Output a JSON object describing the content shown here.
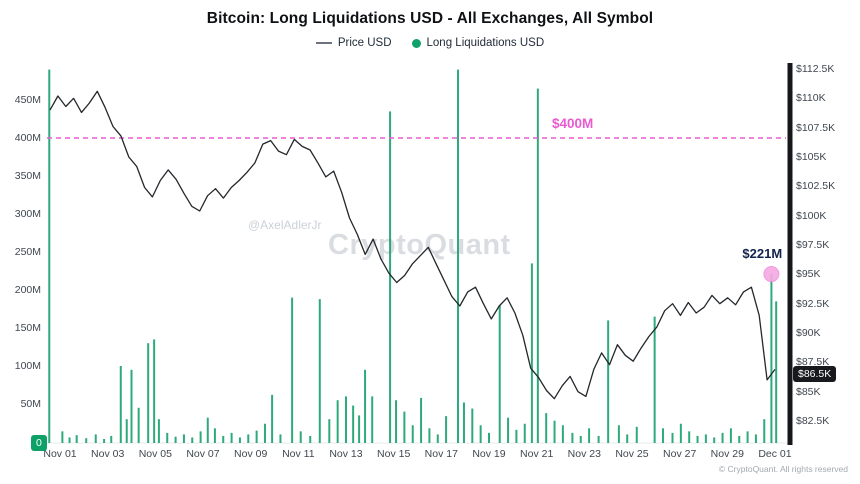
{
  "header": {
    "title": "Bitcoin: Long Liquidations USD - All Exchanges, All Symbol",
    "legend": [
      {
        "label": "Price USD",
        "marker": "line",
        "color": "#6b7280"
      },
      {
        "label": "Long Liquidations USD",
        "marker": "dot",
        "color": "#12a06b"
      }
    ]
  },
  "watermark": {
    "handle": "@AxelAdlerJr",
    "brand": "CryptoQuant"
  },
  "footer": {
    "copyright": "© CryptoQuant. All rights reserved"
  },
  "badges": {
    "liquidation_zero": "0",
    "last_price": "$86.5K"
  },
  "annotations": {
    "threshold": {
      "text": "$400M",
      "value_m": 400
    },
    "spike": {
      "text": "$221M",
      "day": 29.85,
      "value_m": 221
    }
  },
  "colors": {
    "bar": "#17a06e",
    "line": "#24272b",
    "threshold": "#e95bd0",
    "marker_fill": "#f5a9e1",
    "marker_stroke": "#ef8fe0",
    "spike_text": "#12224d",
    "axis_spine": "#15171a",
    "badge_green": "#0da167",
    "badge_dark": "#17191c",
    "baseline": "#e6e8eb"
  },
  "chart_data": {
    "type": "combo",
    "title": "Bitcoin: Long Liquidations USD - All Exchanges, All Symbol",
    "grid": false,
    "legend_position": "top-center",
    "x_axis": {
      "start": "Nov 01",
      "end": "Dec 01",
      "days": 31,
      "tick_labels": [
        "Nov 01",
        "Nov 03",
        "Nov 05",
        "Nov 07",
        "Nov 09",
        "Nov 11",
        "Nov 13",
        "Nov 15",
        "Nov 17",
        "Nov 19",
        "Nov 21",
        "Nov 23",
        "Nov 25",
        "Nov 27",
        "Nov 29",
        "Dec 01"
      ]
    },
    "left_axis": {
      "label": "Long Liquidations USD",
      "unit": "M USD",
      "min": 0,
      "max": 500,
      "tick_labels": [
        "450M",
        "400M",
        "350M",
        "300M",
        "250M",
        "200M",
        "150M",
        "100M",
        "50M"
      ],
      "zero_label": "0"
    },
    "right_axis": {
      "label": "Price USD",
      "unit": "K USD",
      "min": 80.5,
      "max": 113,
      "tick_labels": [
        "$112.5K",
        "$110K",
        "$107.5K",
        "$105K",
        "$102.5K",
        "$100K",
        "$97.5K",
        "$95K",
        "$92.5K",
        "$90K",
        "$87.5K",
        "$85K",
        "$82.5K"
      ],
      "last_price_k": 86.5
    },
    "series": [
      {
        "name": "Price USD",
        "type": "line",
        "axis": "right",
        "points_per_day": 3,
        "values_usd_k": [
          109.0,
          110.2,
          109.3,
          110.0,
          108.8,
          109.6,
          110.6,
          109.2,
          107.6,
          106.8,
          105.0,
          104.2,
          102.4,
          101.6,
          103.0,
          103.9,
          103.1,
          101.9,
          100.8,
          100.4,
          101.7,
          102.3,
          101.5,
          102.4,
          103.0,
          103.7,
          104.5,
          106.1,
          106.4,
          105.5,
          105.2,
          106.5,
          105.9,
          105.6,
          104.5,
          103.3,
          103.8,
          102.0,
          99.8,
          98.4,
          96.7,
          98.0,
          96.3,
          95.1,
          94.3,
          94.9,
          95.9,
          96.6,
          97.3,
          95.9,
          94.5,
          93.1,
          92.3,
          93.5,
          93.9,
          92.5,
          91.2,
          92.3,
          93.0,
          91.7,
          89.8,
          87.0,
          86.2,
          85.1,
          84.4,
          85.5,
          86.3,
          85.0,
          84.6,
          86.9,
          88.3,
          87.3,
          89.0,
          88.1,
          87.6,
          88.7,
          89.7,
          90.5,
          91.9,
          92.5,
          91.5,
          92.6,
          91.7,
          92.2,
          93.2,
          92.5,
          93.0,
          92.4,
          93.5,
          93.9,
          91.5,
          86.0,
          86.9
        ]
      },
      {
        "name": "Long Liquidations USD",
        "type": "bar",
        "axis": "left",
        "points_day_value_m": [
          [
            -0.45,
            490
          ],
          [
            0.1,
            14
          ],
          [
            0.4,
            6
          ],
          [
            0.7,
            9
          ],
          [
            1.1,
            5
          ],
          [
            1.5,
            10
          ],
          [
            1.85,
            4
          ],
          [
            2.15,
            8
          ],
          [
            2.55,
            100
          ],
          [
            2.8,
            30
          ],
          [
            3.0,
            95
          ],
          [
            3.3,
            45
          ],
          [
            3.7,
            130
          ],
          [
            3.95,
            135
          ],
          [
            4.15,
            30
          ],
          [
            4.5,
            12
          ],
          [
            4.85,
            7
          ],
          [
            5.2,
            10
          ],
          [
            5.55,
            6
          ],
          [
            5.9,
            14
          ],
          [
            6.2,
            32
          ],
          [
            6.5,
            18
          ],
          [
            6.85,
            8
          ],
          [
            7.2,
            12
          ],
          [
            7.55,
            6
          ],
          [
            7.9,
            10
          ],
          [
            8.25,
            15
          ],
          [
            8.6,
            24
          ],
          [
            8.9,
            62
          ],
          [
            9.25,
            10
          ],
          [
            9.74,
            190
          ],
          [
            10.1,
            14
          ],
          [
            10.5,
            8
          ],
          [
            10.9,
            188
          ],
          [
            11.3,
            30
          ],
          [
            11.65,
            55
          ],
          [
            12.0,
            60
          ],
          [
            12.3,
            48
          ],
          [
            12.55,
            35
          ],
          [
            12.8,
            95
          ],
          [
            13.1,
            60
          ],
          [
            13.85,
            435
          ],
          [
            14.1,
            55
          ],
          [
            14.45,
            40
          ],
          [
            14.8,
            22
          ],
          [
            15.15,
            58
          ],
          [
            15.5,
            18
          ],
          [
            15.85,
            10
          ],
          [
            16.2,
            34
          ],
          [
            16.7,
            490
          ],
          [
            16.95,
            52
          ],
          [
            17.3,
            44
          ],
          [
            17.65,
            22
          ],
          [
            18.0,
            12
          ],
          [
            18.45,
            180
          ],
          [
            18.8,
            32
          ],
          [
            19.15,
            16
          ],
          [
            19.5,
            24
          ],
          [
            19.8,
            235
          ],
          [
            20.05,
            465
          ],
          [
            20.4,
            38
          ],
          [
            20.75,
            28
          ],
          [
            21.1,
            22
          ],
          [
            21.5,
            12
          ],
          [
            21.85,
            8
          ],
          [
            22.2,
            18
          ],
          [
            22.6,
            8
          ],
          [
            23.0,
            160
          ],
          [
            23.45,
            22
          ],
          [
            23.8,
            10
          ],
          [
            24.2,
            20
          ],
          [
            24.95,
            165
          ],
          [
            25.3,
            18
          ],
          [
            25.7,
            12
          ],
          [
            26.05,
            24
          ],
          [
            26.4,
            14
          ],
          [
            26.75,
            8
          ],
          [
            27.1,
            10
          ],
          [
            27.45,
            6
          ],
          [
            27.8,
            12
          ],
          [
            28.15,
            18
          ],
          [
            28.5,
            8
          ],
          [
            28.85,
            14
          ],
          [
            29.2,
            10
          ],
          [
            29.55,
            30
          ],
          [
            29.85,
            221
          ],
          [
            30.05,
            185
          ]
        ]
      }
    ],
    "annotations": [
      {
        "text": "$400M",
        "kind": "threshold-line",
        "value_m": 400
      },
      {
        "text": "$221M",
        "kind": "spike-callout",
        "day": 29.85,
        "value_m": 221
      },
      {
        "text": "$86.5K",
        "kind": "last-price-badge",
        "value_k": 86.5
      },
      {
        "text": "0",
        "kind": "zero-badge"
      }
    ]
  }
}
